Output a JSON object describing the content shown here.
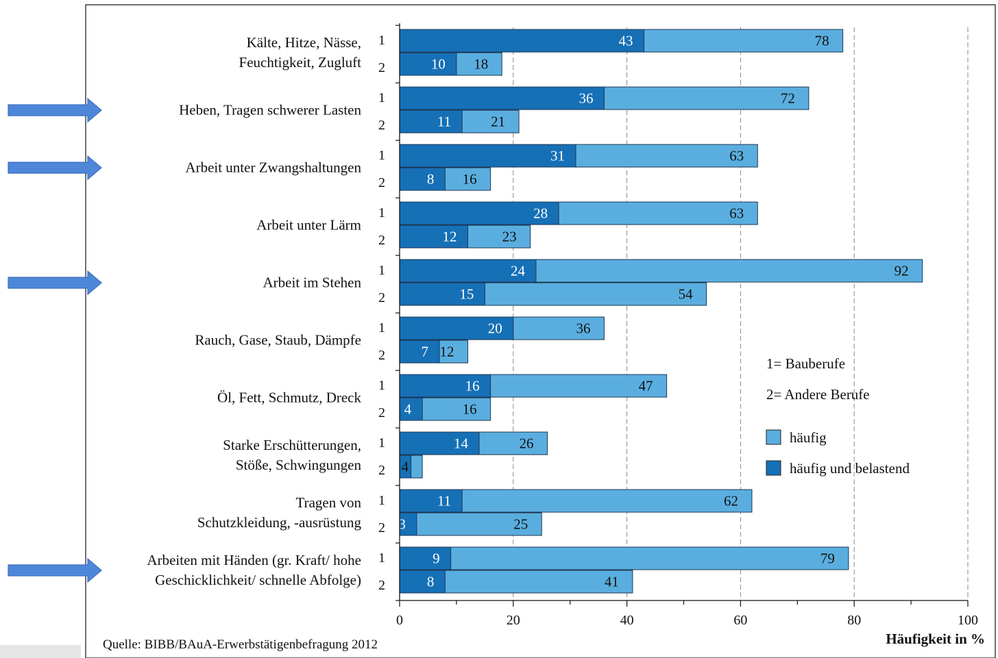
{
  "chart_data": {
    "type": "bar",
    "orientation": "horizontal",
    "categories": [
      [
        "Kälte, Hitze, Nässe,",
        "Feuchtigkeit, Zugluft"
      ],
      [
        "Heben, Tragen schwerer Lasten"
      ],
      [
        "Arbeit unter Zwangshaltungen"
      ],
      [
        "Arbeit unter Lärm"
      ],
      [
        "Arbeit im Stehen"
      ],
      [
        "Rauch, Gase, Staub, Dämpfe"
      ],
      [
        "Öl, Fett, Schmutz, Dreck"
      ],
      [
        "Starke Erschütterungen,",
        "Stöße, Schwingungen"
      ],
      [
        "Tragen von",
        "Schutzkleidung, -ausrüstung"
      ],
      [
        "Arbeiten mit Händen (gr. Kraft/ hohe",
        "Geschicklichkeit/ schnelle Abfolge)"
      ]
    ],
    "row_labels": [
      "1",
      "2"
    ],
    "series": [
      {
        "name": "häufig",
        "color": "#5aaedf",
        "values_group1": [
          78,
          72,
          63,
          63,
          92,
          36,
          47,
          26,
          62,
          79
        ],
        "values_group2": [
          18,
          21,
          16,
          23,
          54,
          12,
          16,
          4,
          25,
          41
        ]
      },
      {
        "name": "häufig und belastend",
        "color": "#1670b6",
        "values_group1": [
          43,
          36,
          31,
          28,
          24,
          20,
          16,
          14,
          11,
          9
        ],
        "values_group2": [
          10,
          11,
          8,
          12,
          15,
          7,
          4,
          2,
          3,
          8
        ]
      }
    ],
    "groups": [
      "1= Bauberufe",
      "2= Andere Berufe"
    ],
    "xlim": [
      0,
      100
    ],
    "xticks": [
      0,
      20,
      40,
      60,
      80,
      100
    ],
    "xlabel": "Häufigkeit in %",
    "grid": "dashed vertical at major ticks",
    "legend_position": "bottom-right"
  },
  "highlight_arrows": [
    1,
    2,
    4,
    9
  ],
  "source_text": "Quelle: BIBB/BAuA-Erwerbstätigenbefragung 2012",
  "colors": {
    "light_bar": "#5aaedf",
    "dark_bar": "#1670b6",
    "arrow": "#4f87d8"
  }
}
